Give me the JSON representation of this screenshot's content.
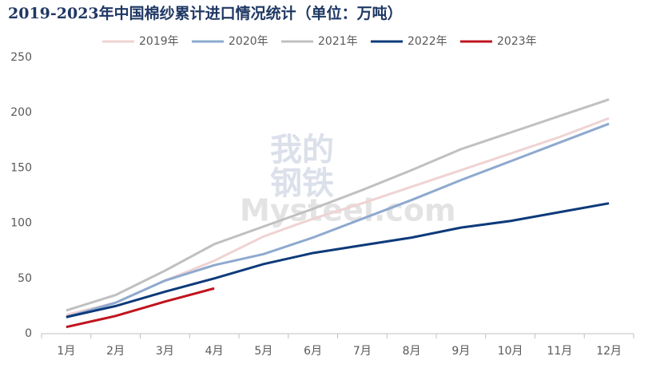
{
  "chart_data": {
    "type": "line",
    "title": "2019-2023年中国棉纱累计进口情况统计（单位：万吨）",
    "watermark": [
      "我的",
      "钢铁",
      "Mysteel.com"
    ],
    "categories": [
      "1月",
      "2月",
      "3月",
      "4月",
      "5月",
      "6月",
      "7月",
      "8月",
      "9月",
      "10月",
      "11月",
      "12月"
    ],
    "series": [
      {
        "name": "2019年",
        "color": "#efd3d3",
        "values": [
          17,
          28,
          48,
          66,
          88,
          104,
          118,
          133,
          148,
          163,
          178,
          195
        ]
      },
      {
        "name": "2020年",
        "color": "#8ea9cf",
        "values": [
          15,
          28,
          48,
          62,
          72,
          87,
          104,
          121,
          139,
          156,
          173,
          190
        ]
      },
      {
        "name": "2021年",
        "color": "#c0c0c0",
        "values": [
          21,
          35,
          57,
          81,
          97,
          113,
          130,
          148,
          167,
          182,
          197,
          212
        ]
      },
      {
        "name": "2022年",
        "color": "#0d3a7a",
        "values": [
          15,
          25,
          38,
          50,
          63,
          73,
          80,
          87,
          96,
          102,
          110,
          118
        ]
      },
      {
        "name": "2023年",
        "color": "#c0141e",
        "values": [
          6,
          16,
          29,
          41,
          null,
          null,
          null,
          null,
          null,
          null,
          null,
          null
        ]
      }
    ],
    "ylim": [
      0,
      250
    ],
    "yticks": [
      0,
      50,
      100,
      150,
      200,
      250
    ],
    "legend": "top"
  }
}
